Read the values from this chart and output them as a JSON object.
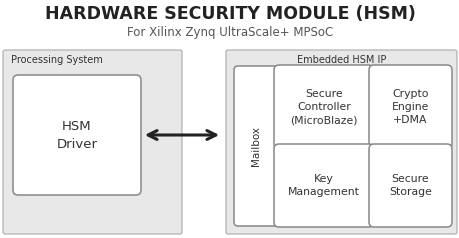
{
  "title_main": "HARDWARE SECURITY MODULE (HSM)",
  "title_sub": "For Xilinx Zynq UltraScale+ MPSoC",
  "bg_color": "#ffffff",
  "outer_fill": "#e8e8e8",
  "box_fill": "#ffffff",
  "label_ps": "Processing System",
  "label_hsm": "Embedded HSM IP",
  "label_hsm_driver": "HSM\nDriver",
  "label_mailbox": "Mailbox",
  "label_secure_ctrl": "Secure\nController\n(MicroBlaze)",
  "label_crypto": "Crypto\nEngine\n+DMA",
  "label_key_mgmt": "Key\nManagement",
  "label_secure_storage": "Secure\nStorage",
  "text_color": "#333333",
  "title_color": "#222222",
  "edge_outer": "#aaaaaa",
  "edge_inner": "#888888"
}
